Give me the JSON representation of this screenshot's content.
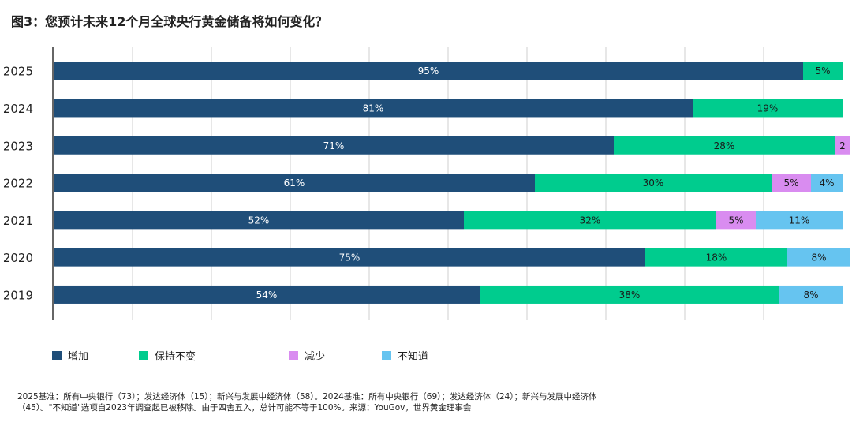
{
  "title": "图3：您预计未来12个月全球央行黄金储备将如何变化？",
  "chart_data": {
    "type": "bar",
    "orientation": "horizontal",
    "stacked": true,
    "title": "图3：您预计未来12个月全球央行黄金储备将如何变化？",
    "categories": [
      "2025",
      "2024",
      "2023",
      "2022",
      "2021",
      "2020",
      "2019"
    ],
    "xlim": [
      0,
      100
    ],
    "grid": true,
    "legend_position": "bottom",
    "series": [
      {
        "name": "增加",
        "color": "#1f4e79",
        "values": [
          95,
          81,
          71,
          61,
          52,
          75,
          54
        ],
        "labels": [
          "95%",
          "81%",
          "71%",
          "61%",
          "52%",
          "75%",
          "54%"
        ]
      },
      {
        "name": "保持不变",
        "color": "#00cc8e",
        "values": [
          5,
          19,
          28,
          30,
          32,
          18,
          38
        ],
        "labels": [
          "5%",
          "19%",
          "28%",
          "30%",
          "32%",
          "18%",
          "38%"
        ]
      },
      {
        "name": "减少",
        "color": "#d98cf0",
        "values": [
          0,
          0,
          2,
          5,
          5,
          0,
          0
        ],
        "labels": [
          "",
          "",
          "2",
          "5%",
          "5%",
          "",
          ""
        ]
      },
      {
        "name": "不知道",
        "color": "#66c4f0",
        "values": [
          0,
          0,
          0,
          4,
          11,
          8,
          8
        ],
        "labels": [
          "",
          "",
          "",
          "4%",
          "11%",
          "8%",
          "8%"
        ]
      }
    ]
  },
  "footnote": {
    "line1": "2025基准：所有中央银行（73）；发达经济体（15）；新兴与发展中经济体（58）。2024基准：所有中央银行（69）；发达经济体（24）；新兴与发展中经济体",
    "line2": "（45）。\"不知道\"选项自2023年调查起已被移除。由于四舍五入，总计可能不等于100%。来源：YouGov，世界黄金理事会"
  }
}
